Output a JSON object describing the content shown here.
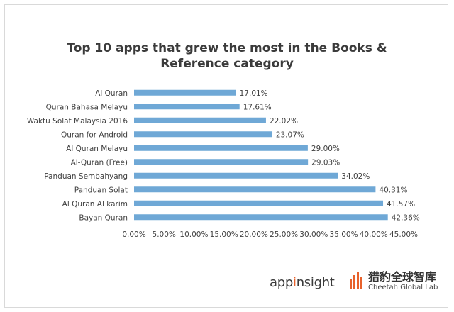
{
  "chart_data": {
    "type": "bar",
    "orientation": "horizontal",
    "title_line1": "Top 10 apps that grew the most in the Books &",
    "title_line2": "Reference category",
    "categories": [
      "Al Quran",
      "Quran Bahasa Melayu",
      "Waktu Solat Malaysia 2016",
      "Quran for Android",
      "Al Quran Melayu",
      "Al-Quran (Free)",
      "Panduan Sembahyang",
      "Panduan Solat",
      "Al Quran Al karim",
      "Bayan Quran"
    ],
    "values": [
      17.01,
      17.61,
      22.02,
      23.07,
      29.0,
      29.03,
      34.02,
      40.31,
      41.57,
      42.36
    ],
    "data_labels": [
      "17.01%",
      "17.61%",
      "22.02%",
      "23.07%",
      "29.00%",
      "29.03%",
      "34.02%",
      "40.31%",
      "41.57%",
      "42.36%"
    ],
    "xlim": [
      0,
      45
    ],
    "xticks": [
      0,
      5,
      10,
      15,
      20,
      25,
      30,
      35,
      40,
      45
    ],
    "xtick_labels": [
      "0.00%",
      "5.00%",
      "10.00%",
      "15.00%",
      "20.00%",
      "25.00%",
      "30.00%",
      "35.00%",
      "40.00%",
      "45.00%"
    ],
    "bar_color": "#6fa8d6",
    "grid": false,
    "legend": "none"
  },
  "branding": {
    "appinsight_prefix": "app",
    "appinsight_accent": "i",
    "appinsight_suffix": "nsight",
    "appinsight_accent_color": "#e8622c",
    "cheetah_cn": "猎豹全球智库",
    "cheetah_en": "Cheetah Global Lab",
    "cheetah_color": "#e8622c"
  }
}
